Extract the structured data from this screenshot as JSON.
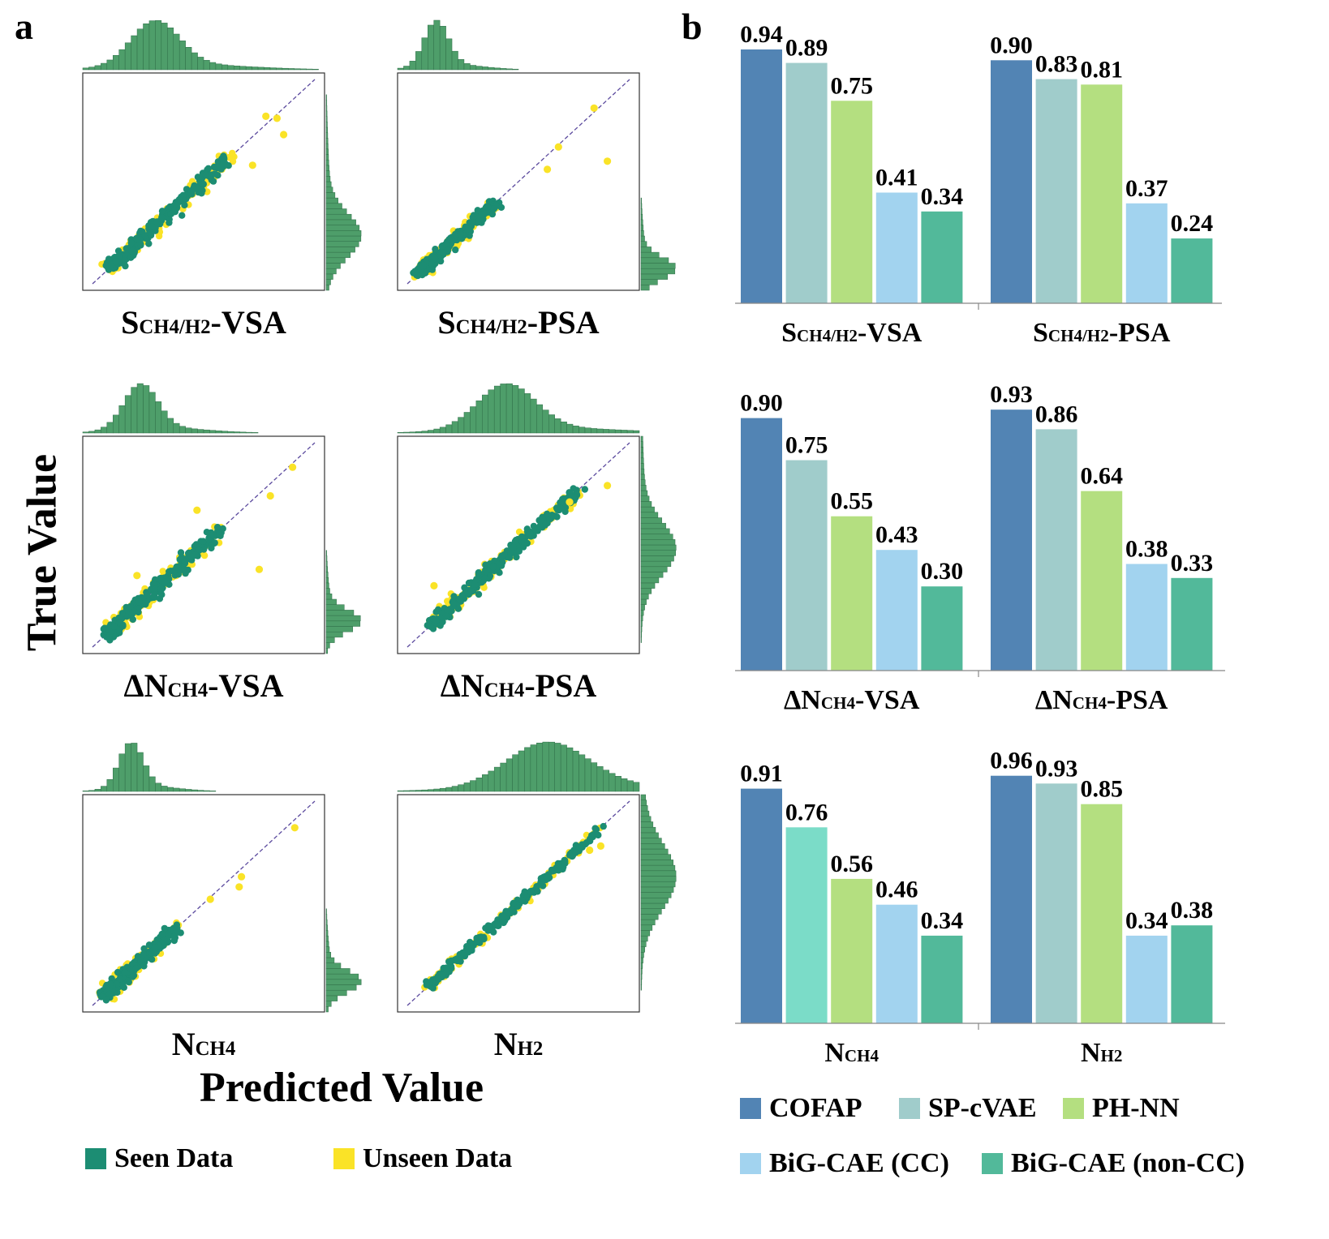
{
  "panel_labels": {
    "a": "a",
    "b": "b"
  },
  "colors": {
    "seen": "#1c8d73",
    "unseen": "#fae327",
    "hist_fill": "#4e9e6a",
    "diagonal": "#5b4a9e",
    "cofap": "#5284b4",
    "spcvae": "#a0cccb",
    "phnn": "#b4df80",
    "bigcae_cc": "#a2d3ef",
    "bigcae_noncc": "#52b99a",
    "nch4_spcvae": "#7bdcc8"
  },
  "axis_titles": {
    "y": "True Value",
    "x": "Predicted Value"
  },
  "scatter_panels": [
    {
      "title_pre": "S",
      "title_sub": "CH4/H2",
      "title_post": "-VSA",
      "spread": 0.035,
      "unseen_outliers": [
        [
          0.83,
          0.81
        ],
        [
          0.86,
          0.73
        ],
        [
          0.72,
          0.58
        ],
        [
          0.78,
          0.82
        ]
      ]
    },
    {
      "title_pre": "S",
      "title_sub": "CH4/H2",
      "title_post": "-PSA",
      "spread": 0.03,
      "unseen_outliers": [
        [
          0.84,
          0.86
        ],
        [
          0.68,
          0.67
        ],
        [
          0.9,
          0.6
        ],
        [
          0.63,
          0.56
        ]
      ]
    },
    {
      "title_pre": "ΔN",
      "title_sub": "CH4",
      "title_post": "-VSA",
      "spread": 0.04,
      "unseen_outliers": [
        [
          0.9,
          0.88
        ],
        [
          0.8,
          0.74
        ],
        [
          0.75,
          0.38
        ],
        [
          0.47,
          0.67
        ],
        [
          0.2,
          0.35
        ]
      ]
    },
    {
      "title_pre": "ΔN",
      "title_sub": "CH4",
      "title_post": "-PSA",
      "spread": 0.035,
      "unseen_outliers": [
        [
          0.9,
          0.79
        ],
        [
          0.73,
          0.71
        ],
        [
          0.12,
          0.3
        ]
      ]
    },
    {
      "title_pre": "N",
      "title_sub": "CH4",
      "title_post": "",
      "spread": 0.035,
      "unseen_outliers": [
        [
          0.91,
          0.87
        ],
        [
          0.67,
          0.63
        ],
        [
          0.66,
          0.58
        ],
        [
          0.53,
          0.52
        ]
      ]
    },
    {
      "title_pre": "N",
      "title_sub": "H2",
      "title_post": "",
      "spread": 0.02,
      "unseen_outliers": [
        [
          0.87,
          0.78
        ],
        [
          0.82,
          0.76
        ]
      ]
    }
  ],
  "scatter_legend": {
    "seen": "Seen Data",
    "unseen": "Unseen Data"
  },
  "chart_data": {
    "type": "bar",
    "categories": [
      "COFAP",
      "SP-cVAE",
      "PH-NN",
      "BiG-CAE (CC)",
      "BiG-CAE (non-CC)"
    ],
    "groups": [
      {
        "label_pre": "S",
        "label_sub": "CH4/H2",
        "label_post": "-VSA",
        "values": [
          0.94,
          0.89,
          0.75,
          0.41,
          0.34
        ],
        "labels": [
          "0.94",
          "0.89",
          "0.75",
          "0.41",
          "0.34"
        ]
      },
      {
        "label_pre": "S",
        "label_sub": "CH4/H2",
        "label_post": "-PSA",
        "values": [
          0.9,
          0.83,
          0.81,
          0.37,
          0.24
        ],
        "labels": [
          "0.90",
          "0.83",
          "0.81",
          "0.37",
          "0.24"
        ]
      },
      {
        "label_pre": "ΔN",
        "label_sub": "CH4",
        "label_post": "-VSA",
        "values": [
          0.9,
          0.75,
          0.55,
          0.43,
          0.3
        ],
        "labels": [
          "0.90",
          "0.75",
          "0.55",
          "0.43",
          "0.30"
        ]
      },
      {
        "label_pre": "ΔN",
        "label_sub": "CH4",
        "label_post": "-PSA",
        "values": [
          0.93,
          0.86,
          0.64,
          0.38,
          0.33
        ],
        "labels": [
          "0.93",
          "0.86",
          "0.64",
          "0.38",
          "0.33"
        ]
      },
      {
        "label_pre": "N",
        "label_sub": "CH4",
        "label_post": "",
        "values": [
          0.91,
          0.76,
          0.56,
          0.46,
          0.34
        ],
        "labels": [
          "0.91",
          "0.76",
          "0.56",
          "0.46",
          "0.34"
        ]
      },
      {
        "label_pre": "N",
        "label_sub": "H2",
        "label_post": "",
        "values": [
          0.96,
          0.93,
          0.85,
          0.34,
          0.38
        ],
        "labels": [
          "0.96",
          "0.93",
          "0.85",
          "0.34",
          "0.38"
        ]
      }
    ],
    "legend": [
      "COFAP",
      "SP-cVAE",
      "PH-NN",
      "BiG-CAE (CC)",
      "BiG-CAE (non-CC)"
    ],
    "ylim": [
      0,
      1
    ],
    "title": "",
    "xlabel": "",
    "ylabel": ""
  }
}
